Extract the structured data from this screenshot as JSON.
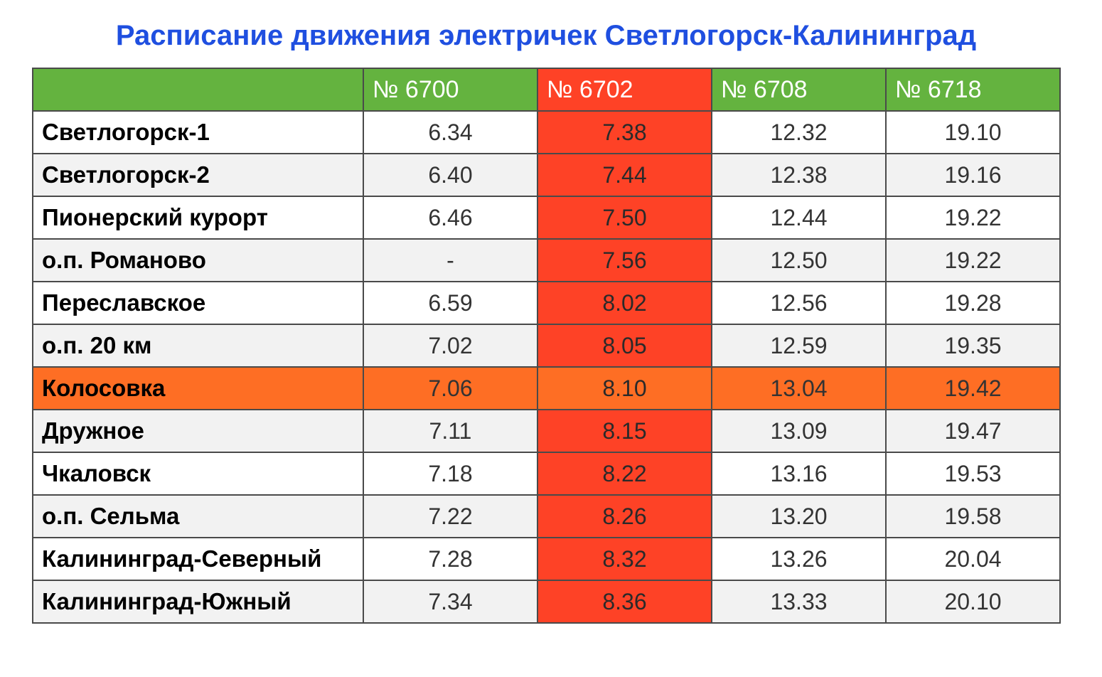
{
  "title": "Расписание движения электричек Светлогорск-Калининград",
  "colors": {
    "title": "#1f4fe0",
    "header_bg": "#64b33f",
    "highlight_column": "#fe4226",
    "highlight_row": "#fe6e24",
    "zebra": "#f2f2f2"
  },
  "table": {
    "header": [
      "",
      "№ 6700",
      "№ 6702",
      "№ 6708",
      "№ 6718"
    ],
    "highlight_column_index": 2,
    "highlight_row_station": "Колосовка",
    "rows": [
      {
        "station": "Светлогорск-1",
        "times": [
          "6.34",
          "7.38",
          "12.32",
          "19.10"
        ]
      },
      {
        "station": "Светлогорск-2",
        "times": [
          "6.40",
          "7.44",
          "12.38",
          "19.16"
        ]
      },
      {
        "station": "Пионерский курорт",
        "times": [
          "6.46",
          "7.50",
          "12.44",
          "19.22"
        ]
      },
      {
        "station": "о.п. Романово",
        "times": [
          "-",
          "7.56",
          "12.50",
          "19.22"
        ]
      },
      {
        "station": "Переславское",
        "times": [
          "6.59",
          "8.02",
          "12.56",
          "19.28"
        ]
      },
      {
        "station": "о.п. 20 км",
        "times": [
          "7.02",
          "8.05",
          "12.59",
          "19.35"
        ]
      },
      {
        "station": "Колосовка",
        "times": [
          "7.06",
          "8.10",
          "13.04",
          "19.42"
        ]
      },
      {
        "station": "Дружное",
        "times": [
          "7.11",
          "8.15",
          "13.09",
          "19.47"
        ]
      },
      {
        "station": "Чкаловск",
        "times": [
          "7.18",
          "8.22",
          "13.16",
          "19.53"
        ]
      },
      {
        "station": "о.п. Сельма",
        "times": [
          "7.22",
          "8.26",
          "13.20",
          "19.58"
        ]
      },
      {
        "station": "Калининград-Северный",
        "times": [
          "7.28",
          "8.32",
          "13.26",
          "20.04"
        ]
      },
      {
        "station": "Калининград-Южный",
        "times": [
          "7.34",
          "8.36",
          "13.33",
          "20.10"
        ]
      }
    ]
  }
}
